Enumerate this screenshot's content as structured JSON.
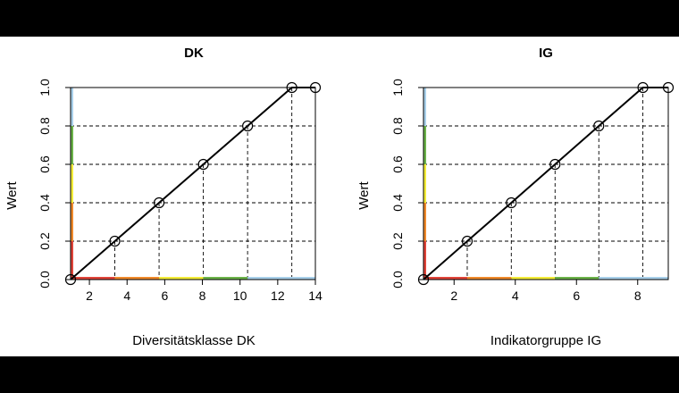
{
  "chart_data": [
    {
      "type": "line",
      "title": "DK",
      "xlabel": "Diversitätsklasse DK",
      "ylabel": "Wert",
      "xlim": [
        1,
        14
      ],
      "ylim": [
        0,
        1
      ],
      "xticks": [
        "2",
        "4",
        "6",
        "8",
        "10",
        "12",
        "14"
      ],
      "yticks": [
        "0.0",
        "0.2",
        "0.4",
        "0.6",
        "0.8",
        "1.0"
      ],
      "grid": "dashed drop lines at points",
      "series": [
        {
          "x": [
            1,
            3.35,
            5.7,
            8.05,
            10.4,
            12.75,
            14
          ],
          "y": [
            0,
            0.2,
            0.4,
            0.6,
            0.8,
            1.0,
            1.0
          ]
        }
      ],
      "xbands": [
        {
          "from": 1,
          "to": 3.35,
          "color": "#e0453a"
        },
        {
          "from": 3.35,
          "to": 5.7,
          "color": "#f08a2c"
        },
        {
          "from": 5.7,
          "to": 8.05,
          "color": "#f3ec3a"
        },
        {
          "from": 8.05,
          "to": 10.4,
          "color": "#6cb34a"
        },
        {
          "from": 10.4,
          "to": 14,
          "color": "#a9d0ea"
        }
      ],
      "ybands": [
        {
          "from": 0,
          "to": 0.2,
          "color": "#e0453a"
        },
        {
          "from": 0.2,
          "to": 0.4,
          "color": "#f08a2c"
        },
        {
          "from": 0.4,
          "to": 0.6,
          "color": "#f3ec3a"
        },
        {
          "from": 0.6,
          "to": 0.8,
          "color": "#6cb34a"
        },
        {
          "from": 0.8,
          "to": 1.0,
          "color": "#a9d0ea"
        }
      ]
    },
    {
      "type": "line",
      "title": "IG",
      "xlabel": "Indikatorgruppe IG",
      "ylabel": "Wert",
      "xlim": [
        1,
        9
      ],
      "ylim": [
        0,
        1
      ],
      "xticks": [
        "2",
        "4",
        "6",
        "8"
      ],
      "yticks": [
        "0.0",
        "0.2",
        "0.4",
        "0.6",
        "0.8",
        "1.0"
      ],
      "grid": "dashed drop lines at points",
      "series": [
        {
          "x": [
            1,
            2.43,
            3.87,
            5.3,
            6.73,
            8.17,
            9
          ],
          "y": [
            0,
            0.2,
            0.4,
            0.6,
            0.8,
            1.0,
            1.0
          ]
        }
      ],
      "xbands": [
        {
          "from": 1,
          "to": 2.43,
          "color": "#e0453a"
        },
        {
          "from": 2.43,
          "to": 3.87,
          "color": "#f08a2c"
        },
        {
          "from": 3.87,
          "to": 5.3,
          "color": "#f3ec3a"
        },
        {
          "from": 5.3,
          "to": 6.73,
          "color": "#6cb34a"
        },
        {
          "from": 6.73,
          "to": 9,
          "color": "#a9d0ea"
        }
      ],
      "ybands": [
        {
          "from": 0,
          "to": 0.2,
          "color": "#e0453a"
        },
        {
          "from": 0.2,
          "to": 0.4,
          "color": "#f08a2c"
        },
        {
          "from": 0.4,
          "to": 0.6,
          "color": "#f3ec3a"
        },
        {
          "from": 0.6,
          "to": 0.8,
          "color": "#6cb34a"
        },
        {
          "from": 0.8,
          "to": 1.0,
          "color": "#a9d0ea"
        }
      ]
    }
  ]
}
